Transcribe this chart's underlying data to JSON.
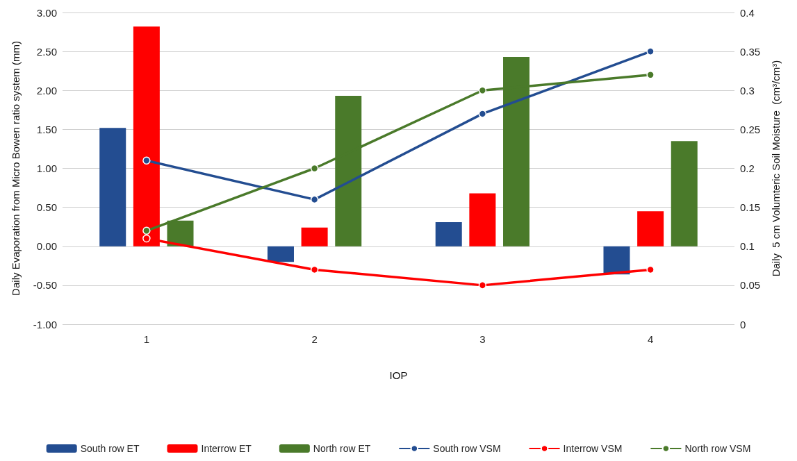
{
  "chart_data": {
    "type": "bar",
    "xlabel": "IOP",
    "ylabel": "Daily Evaporation from Micro Bowen ratio system (mm)",
    "y2label": "Daily  5 cm Volumteric Soil Moisture  (cm³/cm³)",
    "categories": [
      "1",
      "2",
      "3",
      "4"
    ],
    "series": [
      {
        "name": "South row ET",
        "color": "#234d91",
        "values": [
          1.52,
          -0.2,
          0.31,
          -0.36
        ]
      },
      {
        "name": "Interrow ET",
        "color": "#ff0000",
        "values": [
          2.82,
          0.24,
          0.68,
          0.45
        ]
      },
      {
        "name": "North row ET",
        "color": "#4a7a2a",
        "values": [
          0.33,
          1.93,
          2.43,
          1.35
        ]
      },
      {
        "name": "South row VSM",
        "type": "line",
        "axis": "y2",
        "color": "#234d91",
        "values": [
          0.21,
          0.16,
          0.27,
          0.35
        ]
      },
      {
        "name": "Interrow VSM",
        "type": "line",
        "axis": "y2",
        "color": "#ff0000",
        "values": [
          0.11,
          0.07,
          0.05,
          0.07
        ]
      },
      {
        "name": "North row VSM",
        "type": "line",
        "axis": "y2",
        "color": "#4a7a2a",
        "values": [
          0.12,
          0.2,
          0.3,
          0.32
        ]
      }
    ],
    "ylim": [
      -1,
      3
    ],
    "yticks": [
      {
        "value": -1,
        "label": "-1.00"
      },
      {
        "value": -0.5,
        "label": "-0.50"
      },
      {
        "value": 0,
        "label": "0.00"
      },
      {
        "value": 0.5,
        "label": "0.50"
      },
      {
        "value": 1,
        "label": "1.00"
      },
      {
        "value": 1.5,
        "label": "1.50"
      },
      {
        "value": 2,
        "label": "2.00"
      },
      {
        "value": 2.5,
        "label": "2.50"
      },
      {
        "value": 3,
        "label": "3.00"
      }
    ],
    "y2lim": [
      0,
      0.4
    ],
    "y2ticks": [
      0,
      0.05,
      0.1,
      0.15,
      0.2,
      0.25,
      0.3,
      0.35,
      0.4
    ],
    "grid": "y",
    "legend": "bottom",
    "marker": "circle"
  }
}
